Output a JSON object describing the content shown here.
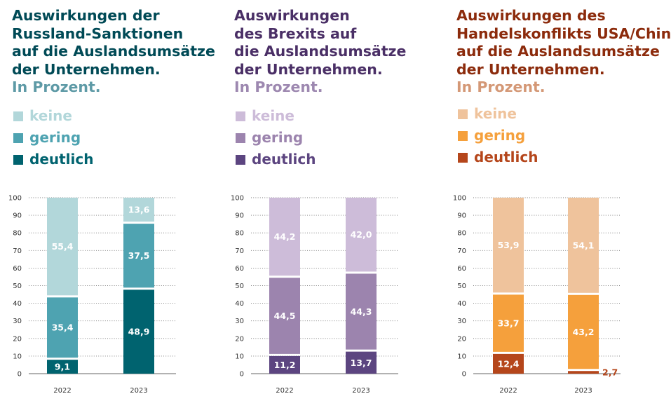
{
  "chart_data": [
    {
      "type": "bar",
      "stacked": true,
      "title_lines": [
        "Auswirkungen der",
        "Russland-Sanktionen",
        "auf die Auslandsumsätze",
        "der Unternehmen."
      ],
      "subtitle": "In Prozent.",
      "categories": [
        "2022",
        "2023"
      ],
      "series": [
        {
          "name": "deutlich",
          "values": [
            9.1,
            48.9
          ],
          "labels": [
            "9,1",
            "48,9"
          ],
          "color": "#00636f"
        },
        {
          "name": "gering",
          "values": [
            35.4,
            37.5
          ],
          "labels": [
            "35,4",
            "37,5"
          ],
          "color": "#4ea3b1"
        },
        {
          "name": "keine",
          "values": [
            55.4,
            13.6
          ],
          "labels": [
            "55,4",
            "13,6"
          ],
          "color": "#b2d7da"
        }
      ],
      "ylim": [
        0,
        100
      ],
      "yticks": [
        "0",
        "10",
        "20",
        "30",
        "40",
        "50",
        "60",
        "70",
        "80",
        "90",
        "100"
      ],
      "grid": true,
      "legend_position": "top",
      "title_color": "#004a56",
      "subtitle_color": "#5e9aa6"
    },
    {
      "type": "bar",
      "stacked": true,
      "title_lines": [
        "Auswirkungen",
        "des Brexits auf",
        "die Auslandsumsätze",
        "der Unternehmen."
      ],
      "subtitle": "In Prozent.",
      "categories": [
        "2022",
        "2023"
      ],
      "series": [
        {
          "name": "deutlich",
          "values": [
            11.2,
            13.7
          ],
          "labels": [
            "11,2",
            "13,7"
          ],
          "color": "#5c4580"
        },
        {
          "name": "gering",
          "values": [
            44.5,
            44.3
          ],
          "labels": [
            "44,5",
            "44,3"
          ],
          "color": "#9c84ae"
        },
        {
          "name": "keine",
          "values": [
            44.2,
            42.0
          ],
          "labels": [
            "44,2",
            "42,0"
          ],
          "color": "#cdbcd9"
        }
      ],
      "ylim": [
        0,
        100
      ],
      "yticks": [
        "0",
        "10",
        "20",
        "30",
        "40",
        "50",
        "60",
        "70",
        "80",
        "90",
        "100"
      ],
      "grid": true,
      "legend_position": "top",
      "title_color": "#4a2f66",
      "subtitle_color": "#9d88b0"
    },
    {
      "type": "bar",
      "stacked": true,
      "title_lines": [
        "Auswirkungen des",
        "Handelskonflikts USA/China",
        "auf die Auslandsumsätze",
        "der Unternehmen."
      ],
      "subtitle": "In Prozent.",
      "categories": [
        "2022",
        "2023"
      ],
      "series": [
        {
          "name": "deutlich",
          "values": [
            12.4,
            2.7
          ],
          "labels": [
            "12,4",
            "2,7"
          ],
          "color": "#b5461b"
        },
        {
          "name": "gering",
          "values": [
            33.7,
            43.2
          ],
          "labels": [
            "33,7",
            "43,2"
          ],
          "color": "#f5a03c"
        },
        {
          "name": "keine",
          "values": [
            53.9,
            54.1
          ],
          "labels": [
            "53,9",
            "54,1"
          ],
          "color": "#efc39c"
        }
      ],
      "ylim": [
        0,
        100
      ],
      "yticks": [
        "0",
        "10",
        "20",
        "30",
        "40",
        "50",
        "60",
        "70",
        "80",
        "90",
        "100"
      ],
      "grid": true,
      "legend_position": "top",
      "title_color": "#8c2b0c",
      "subtitle_color": "#d49876"
    }
  ]
}
